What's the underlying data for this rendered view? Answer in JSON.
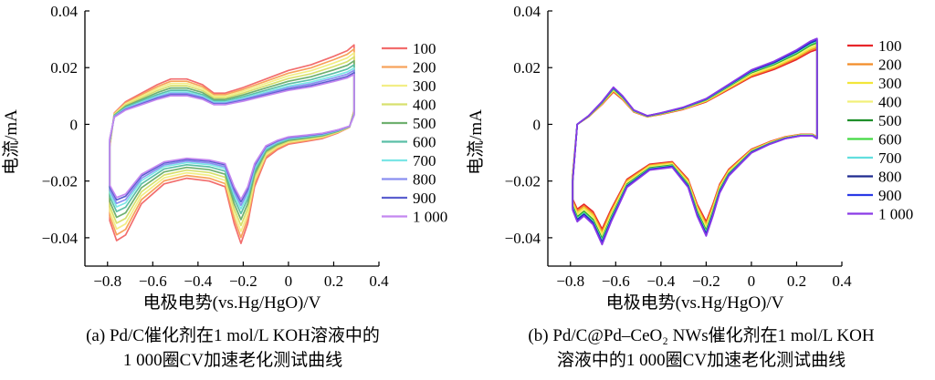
{
  "figure": {
    "caption_a_line1": "(a) Pd/C催化剂在1 mol/L KOH溶液中的",
    "caption_a_line2": "1 000圈CV加速老化测试曲线",
    "caption_b_line1": "(b) Pd/C@Pd–CeO₂ NWs催化剂在1 mol/L KOH",
    "caption_b_line2": "溶液中的1 000圈CV加速老化测试曲线"
  },
  "chart_data": [
    {
      "panel": "a",
      "type": "line",
      "xlabel": "电极电势(vs.Hg/HgO)/V",
      "ylabel": "电流/mA",
      "xlim": [
        -0.9,
        0.4
      ],
      "ylim": [
        -0.05,
        0.04
      ],
      "xticks": [
        -0.8,
        -0.6,
        -0.4,
        -0.2,
        0,
        0.2,
        0.4
      ],
      "xtick_labels": [
        "−0.8",
        "−0.6",
        "−0.4",
        "−0.2",
        "0",
        "0.2",
        "0.4"
      ],
      "yticks": [
        0.04,
        0.02,
        0,
        -0.02,
        -0.04
      ],
      "ytick_labels": [
        "0.04",
        "0.02",
        "0",
        "−0.02",
        "−0.04"
      ],
      "grid": false,
      "legend_position": "right",
      "series": [
        {
          "name": "100",
          "color": "#f26d6d",
          "scale": 1.0
        },
        {
          "name": "200",
          "color": "#f7a35c",
          "scale": 0.95
        },
        {
          "name": "300",
          "color": "#f2ee86",
          "scale": 0.9
        },
        {
          "name": "400",
          "color": "#d8e06e",
          "scale": 0.85
        },
        {
          "name": "500",
          "color": "#6fb06f",
          "scale": 0.8
        },
        {
          "name": "600",
          "color": "#5bbfa6",
          "scale": 0.75
        },
        {
          "name": "700",
          "color": "#7be6e6",
          "scale": 0.71
        },
        {
          "name": "800",
          "color": "#8a8ff0",
          "scale": 0.68
        },
        {
          "name": "900",
          "color": "#5b5fcf",
          "scale": 0.65
        },
        {
          "name": "1 000",
          "color": "#c488f0",
          "scale": 0.63
        }
      ],
      "anodic_profile": {
        "x": [
          -0.79,
          -0.77,
          -0.72,
          -0.65,
          -0.58,
          -0.52,
          -0.45,
          -0.38,
          -0.33,
          -0.28,
          -0.2,
          -0.1,
          0.0,
          0.1,
          0.2,
          0.26,
          0.29
        ],
        "y": [
          -0.008,
          0.004,
          0.008,
          0.011,
          0.014,
          0.016,
          0.016,
          0.014,
          0.011,
          0.011,
          0.013,
          0.016,
          0.019,
          0.021,
          0.024,
          0.026,
          0.028
        ]
      },
      "cathodic_profile": {
        "x": [
          0.29,
          0.27,
          0.22,
          0.15,
          0.08,
          0.0,
          -0.05,
          -0.1,
          -0.15,
          -0.18,
          -0.21,
          -0.24,
          -0.28,
          -0.35,
          -0.45,
          -0.55,
          -0.65,
          -0.72,
          -0.76,
          -0.79
        ],
        "y": [
          0.005,
          -0.001,
          -0.003,
          -0.005,
          -0.006,
          -0.007,
          -0.009,
          -0.012,
          -0.022,
          -0.035,
          -0.042,
          -0.035,
          -0.022,
          -0.02,
          -0.019,
          -0.021,
          -0.028,
          -0.039,
          -0.041,
          -0.034
        ]
      }
    },
    {
      "panel": "b",
      "type": "line",
      "xlabel": "电极电势(vs.Hg/HgO)/V",
      "ylabel": "电流/mA",
      "xlim": [
        -0.9,
        0.4
      ],
      "ylim": [
        -0.05,
        0.04
      ],
      "xticks": [
        -0.8,
        -0.6,
        -0.4,
        -0.2,
        0,
        0.2,
        0.4
      ],
      "xtick_labels": [
        "−0.8",
        "−0.6",
        "−0.4",
        "−0.2",
        "0",
        "0.2",
        "0.4"
      ],
      "yticks": [
        0.04,
        0.02,
        0,
        -0.02,
        -0.04
      ],
      "ytick_labels": [
        "0.04",
        "0.02",
        "0",
        "−0.02",
        "−0.04"
      ],
      "grid": false,
      "legend_position": "right",
      "series": [
        {
          "name": "100",
          "color": "#e8262a",
          "scale": 0.88
        },
        {
          "name": "200",
          "color": "#f28c28",
          "scale": 0.9
        },
        {
          "name": "300",
          "color": "#f2e63a",
          "scale": 0.92
        },
        {
          "name": "400",
          "color": "#f2f07a",
          "scale": 0.94
        },
        {
          "name": "500",
          "color": "#1f8f2a",
          "scale": 0.96
        },
        {
          "name": "600",
          "color": "#43d943",
          "scale": 0.97
        },
        {
          "name": "700",
          "color": "#62dede",
          "scale": 0.98
        },
        {
          "name": "800",
          "color": "#1f2a8f",
          "scale": 0.99
        },
        {
          "name": "900",
          "color": "#2a3ae6",
          "scale": 1.0
        },
        {
          "name": "1 000",
          "color": "#8a3ae6",
          "scale": 1.01
        }
      ],
      "anodic_profile": {
        "x": [
          -0.79,
          -0.77,
          -0.72,
          -0.66,
          -0.61,
          -0.57,
          -0.52,
          -0.46,
          -0.4,
          -0.3,
          -0.2,
          -0.1,
          0.0,
          0.1,
          0.2,
          0.26,
          0.29
        ],
        "y": [
          -0.02,
          0.0,
          0.003,
          0.008,
          0.013,
          0.01,
          0.005,
          0.003,
          0.004,
          0.006,
          0.009,
          0.014,
          0.019,
          0.022,
          0.026,
          0.029,
          0.03
        ]
      },
      "cathodic_profile": {
        "x": [
          0.29,
          0.27,
          0.22,
          0.15,
          0.08,
          0.0,
          -0.05,
          -0.1,
          -0.14,
          -0.17,
          -0.2,
          -0.24,
          -0.28,
          -0.35,
          -0.45,
          -0.55,
          -0.62,
          -0.66,
          -0.7,
          -0.74,
          -0.77,
          -0.79
        ],
        "y": [
          -0.005,
          -0.004,
          -0.004,
          -0.005,
          -0.007,
          -0.01,
          -0.014,
          -0.018,
          -0.024,
          -0.032,
          -0.039,
          -0.032,
          -0.022,
          -0.015,
          -0.016,
          -0.022,
          -0.034,
          -0.042,
          -0.035,
          -0.032,
          -0.034,
          -0.03
        ]
      }
    }
  ]
}
